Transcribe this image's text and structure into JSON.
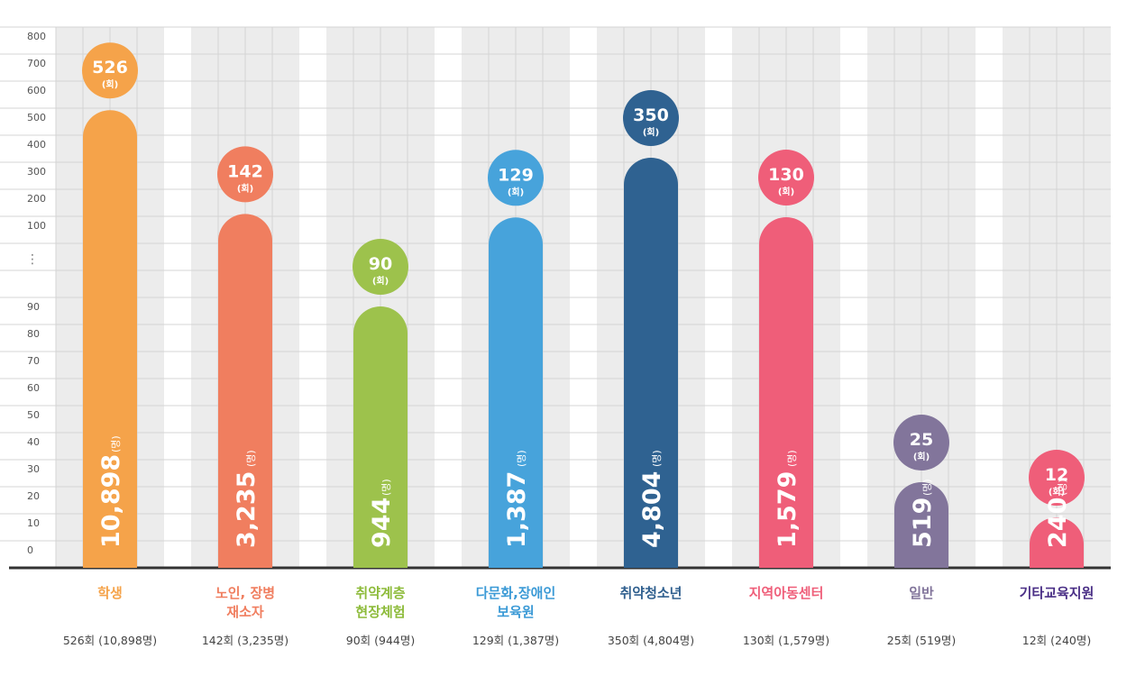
{
  "chart_data": {
    "type": "bar",
    "y_ticks_upper": [
      "800",
      "700",
      "600",
      "500",
      "400",
      "300",
      "200",
      "100"
    ],
    "y_break_label": "⋮",
    "y_ticks_lower": [
      "90",
      "80",
      "70",
      "60",
      "50",
      "40",
      "30",
      "20",
      "10",
      "0"
    ],
    "grid": true,
    "unit_sessions": "(회)",
    "unit_people": "(명)",
    "series": [
      {
        "category": "학생",
        "label_lines": [
          "학생"
        ],
        "sessions": 526,
        "sessions_text": "526",
        "people": 10898,
        "people_text": "10,898",
        "summary": "526회 (10,898명)",
        "color": "#f5a34a",
        "label_color": "#f5a34a"
      },
      {
        "category": "노인, 장병 재소자",
        "label_lines": [
          "노인, 장병",
          "재소자"
        ],
        "sessions": 142,
        "sessions_text": "142",
        "people": 3235,
        "people_text": "3,235",
        "summary": "142회 (3,235명)",
        "color": "#f07e5f",
        "label_color": "#f07e5f"
      },
      {
        "category": "취약계층 현장체험",
        "label_lines": [
          "취약계층",
          "현장체험"
        ],
        "sessions": 90,
        "sessions_text": "90",
        "people": 944,
        "people_text": "944",
        "summary": "90회 (944명)",
        "color": "#9dc24c",
        "label_color": "#8dbb3a"
      },
      {
        "category": "다문화,장애인 보육원",
        "label_lines": [
          "다문화,장애인",
          "보육원"
        ],
        "sessions": 129,
        "sessions_text": "129",
        "people": 1387,
        "people_text": "1,387",
        "summary": "129회 (1,387명)",
        "color": "#47a3db",
        "label_color": "#3b9ad6"
      },
      {
        "category": "취약청소년",
        "label_lines": [
          "취약청소년"
        ],
        "sessions": 350,
        "sessions_text": "350",
        "people": 4804,
        "people_text": "4,804",
        "summary": "350회 (4,804명)",
        "color": "#2f6291",
        "label_color": "#2f5f8e"
      },
      {
        "category": "지역아동센터",
        "label_lines": [
          "지역아동센터"
        ],
        "sessions": 130,
        "sessions_text": "130",
        "people": 1579,
        "people_text": "1,579",
        "summary": "130회 (1,579명)",
        "color": "#ef5e79",
        "label_color": "#ef5e79"
      },
      {
        "category": "일반",
        "label_lines": [
          "일반"
        ],
        "sessions": 25,
        "sessions_text": "25",
        "people": 519,
        "people_text": "519",
        "summary": "25회 (519명)",
        "color": "#82759b",
        "label_color": "#82759b"
      },
      {
        "category": "기타교육지원",
        "label_lines": [
          "기타교육지원"
        ],
        "sessions": 12,
        "sessions_text": "12",
        "people": 240,
        "people_text": "240",
        "summary": "12회 (240명)",
        "color": "#ef5e79",
        "label_color": "#4a2f86"
      }
    ]
  }
}
